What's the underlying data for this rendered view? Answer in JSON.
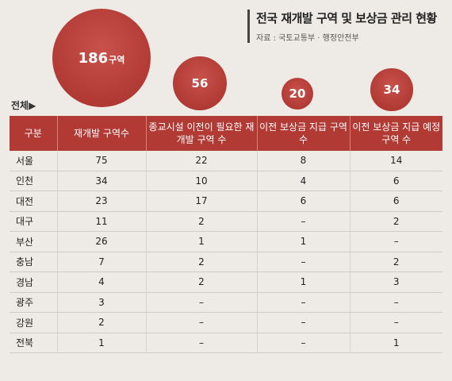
{
  "title": "전국 재개발 구역 및 보상금 관리 현황",
  "source": "자료 : 국토교통부 · 행정안전부",
  "total_label": "전체▶",
  "bubble_unit": "구역",
  "chart_data": {
    "type": "table",
    "totals": [
      186,
      56,
      20,
      34
    ],
    "headers": [
      "구분",
      "재개발 구역수",
      "종교시설 이전이 필요한 재개발 구역 수",
      "이전 보상금 지급 구역 수",
      "이전 보상금 지급 예정 구역 수"
    ],
    "rows": [
      [
        "서울",
        "75",
        "22",
        "8",
        "14"
      ],
      [
        "인천",
        "34",
        "10",
        "4",
        "6"
      ],
      [
        "대전",
        "23",
        "17",
        "6",
        "6"
      ],
      [
        "대구",
        "11",
        "2",
        "–",
        "2"
      ],
      [
        "부산",
        "26",
        "1",
        "1",
        "–"
      ],
      [
        "충남",
        "7",
        "2",
        "–",
        "2"
      ],
      [
        "경남",
        "4",
        "2",
        "1",
        "3"
      ],
      [
        "광주",
        "3",
        "–",
        "–",
        "–"
      ],
      [
        "강원",
        "2",
        "–",
        "–",
        "–"
      ],
      [
        "전북",
        "1",
        "–",
        "–",
        "1"
      ]
    ]
  }
}
